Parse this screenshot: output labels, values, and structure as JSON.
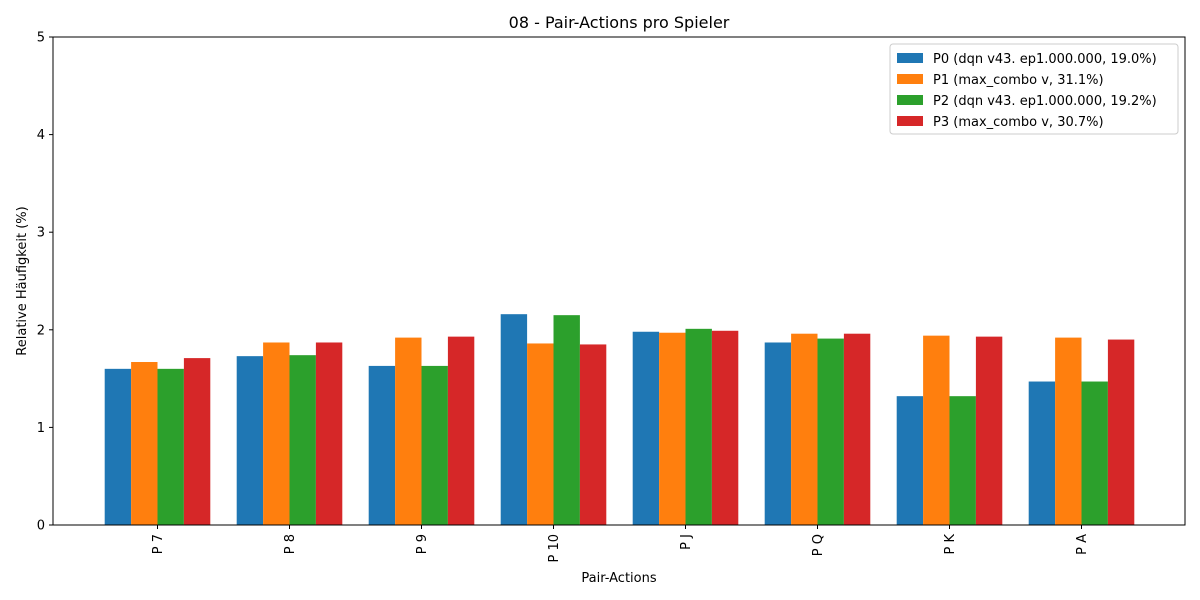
{
  "chart_data": {
    "type": "bar",
    "title": "08 - Pair-Actions pro Spieler",
    "xlabel": "Pair-Actions",
    "ylabel": "Relative Häufigkeit (%)",
    "categories": [
      "P 7",
      "P 8",
      "P 9",
      "P 10",
      "P J",
      "P Q",
      "P K",
      "P A"
    ],
    "ylim": [
      0,
      5
    ],
    "yticks": [
      "0",
      "1",
      "2",
      "3",
      "4",
      "5"
    ],
    "grid": false,
    "legend_position": "top-right",
    "series": [
      {
        "name": "P0 (dqn v43. ep1.000.000, 19.0%)",
        "color": "#1f77b4",
        "values": [
          1.6,
          1.73,
          1.63,
          2.16,
          1.98,
          1.87,
          1.32,
          1.47
        ]
      },
      {
        "name": "P1 (max_combo v, 31.1%)",
        "color": "#ff7f0e",
        "values": [
          1.67,
          1.87,
          1.92,
          1.86,
          1.97,
          1.96,
          1.94,
          1.92
        ]
      },
      {
        "name": "P2 (dqn v43. ep1.000.000, 19.2%)",
        "color": "#2ca02c",
        "values": [
          1.6,
          1.74,
          1.63,
          2.15,
          2.01,
          1.91,
          1.32,
          1.47
        ]
      },
      {
        "name": "P3 (max_combo v, 30.7%)",
        "color": "#d62728",
        "values": [
          1.71,
          1.87,
          1.93,
          1.85,
          1.99,
          1.96,
          1.93,
          1.9
        ]
      }
    ]
  }
}
